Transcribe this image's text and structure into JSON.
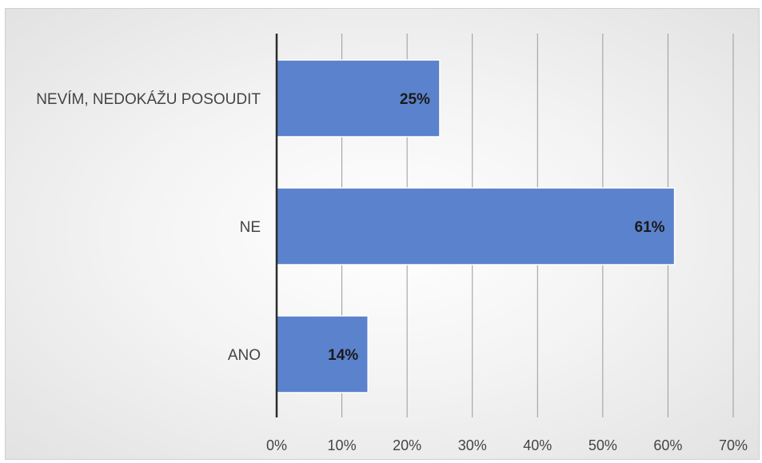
{
  "chart_data": {
    "type": "bar",
    "orientation": "horizontal",
    "categories": [
      "NEVÍM, NEDOKÁŽU POSOUDIT",
      "NE",
      "ANO"
    ],
    "values": [
      25,
      61,
      14
    ],
    "data_labels": [
      "25%",
      "61%",
      "14%"
    ],
    "xlim": [
      0,
      70
    ],
    "x_ticks": [
      0,
      10,
      20,
      30,
      40,
      50,
      60,
      70
    ],
    "x_tick_labels": [
      "0%",
      "10%",
      "20%",
      "30%",
      "40%",
      "50%",
      "60%",
      "70%"
    ],
    "grid": "vertical",
    "legend": "none",
    "bar_color": "#5b82cc",
    "bar_edge_color": "#ffffff",
    "title": "",
    "xlabel": "",
    "ylabel": ""
  }
}
